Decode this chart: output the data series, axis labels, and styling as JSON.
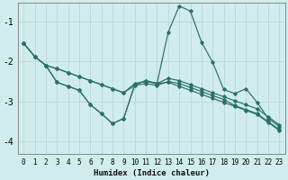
{
  "xlabel": "Humidex (Indice chaleur)",
  "xlim": [
    -0.5,
    23.5
  ],
  "ylim": [
    -4.3,
    -0.55
  ],
  "yticks": [
    -4,
    -3,
    -2,
    -1
  ],
  "xticks": [
    0,
    1,
    2,
    3,
    4,
    5,
    6,
    7,
    8,
    9,
    10,
    11,
    12,
    13,
    14,
    15,
    16,
    17,
    18,
    19,
    20,
    21,
    22,
    23
  ],
  "background_color": "#d0ecec",
  "grid_color": "#b8d8d8",
  "line_color": "#2a7068",
  "lines": [
    {
      "x": [
        0,
        1,
        2,
        3,
        4,
        5,
        6,
        7,
        8,
        9,
        10,
        11,
        12,
        13,
        14,
        15,
        16,
        17,
        18,
        19,
        20,
        21,
        22,
        23
      ],
      "y": [
        -1.55,
        -1.88,
        -2.1,
        -2.18,
        -2.28,
        -2.38,
        -2.48,
        -2.58,
        -2.68,
        -2.78,
        -2.55,
        -2.5,
        -2.55,
        -2.42,
        -2.48,
        -2.58,
        -2.68,
        -2.78,
        -2.88,
        -2.98,
        -3.08,
        -3.18,
        -3.38,
        -3.58
      ]
    },
    {
      "x": [
        0,
        1,
        2,
        3,
        4,
        5,
        6,
        7,
        8,
        9,
        10,
        11,
        12,
        13,
        14,
        15,
        16,
        17,
        18,
        19,
        20,
        21,
        22,
        23
      ],
      "y": [
        -1.55,
        -1.88,
        -2.1,
        -2.18,
        -2.28,
        -2.38,
        -2.48,
        -2.58,
        -2.68,
        -2.78,
        -2.6,
        -2.55,
        -2.6,
        -2.5,
        -2.55,
        -2.65,
        -2.75,
        -2.85,
        -2.95,
        -3.1,
        -3.2,
        -3.3,
        -3.5,
        -3.7
      ]
    },
    {
      "x": [
        0,
        1,
        2,
        3,
        4,
        5,
        6,
        7,
        8,
        9,
        10,
        11,
        12,
        13,
        14,
        15,
        16,
        17,
        18,
        19,
        20,
        21,
        22,
        23
      ],
      "y": [
        -1.55,
        -1.88,
        -2.1,
        -2.52,
        -2.62,
        -2.72,
        -3.08,
        -3.3,
        -3.55,
        -3.42,
        -2.58,
        -2.48,
        -2.55,
        -1.28,
        -0.62,
        -0.75,
        -1.52,
        -2.02,
        -2.7,
        -2.8,
        -2.68,
        -3.02,
        -3.42,
        -3.62
      ]
    },
    {
      "x": [
        2,
        3,
        4,
        5,
        6,
        7,
        8,
        9,
        10,
        11,
        12,
        13,
        14,
        15,
        16,
        17,
        18,
        19,
        20,
        21,
        22,
        23
      ],
      "y": [
        -2.1,
        -2.52,
        -2.62,
        -2.72,
        -3.08,
        -3.3,
        -3.55,
        -3.42,
        -2.58,
        -2.48,
        -2.55,
        -2.52,
        -2.62,
        -2.72,
        -2.82,
        -2.92,
        -3.02,
        -3.12,
        -3.22,
        -3.32,
        -3.52,
        -3.72
      ]
    }
  ]
}
